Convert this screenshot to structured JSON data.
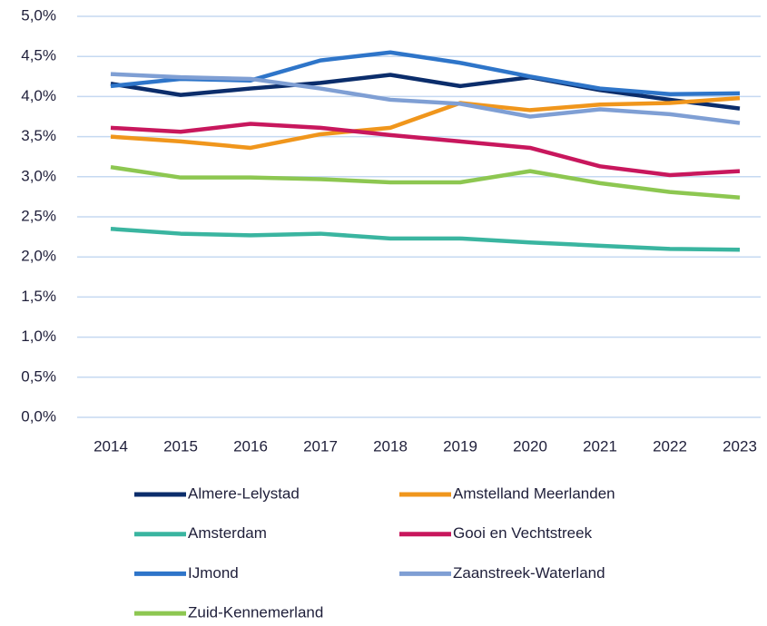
{
  "chart_data": {
    "type": "line",
    "categories": [
      "2014",
      "2015",
      "2016",
      "2017",
      "2018",
      "2019",
      "2020",
      "2021",
      "2022",
      "2023"
    ],
    "ylim": [
      0,
      5
    ],
    "yticks": [
      {
        "value": 0,
        "label": "0,0%"
      },
      {
        "value": 0.5,
        "label": "0,5%"
      },
      {
        "value": 1,
        "label": "1,0%"
      },
      {
        "value": 1.5,
        "label": "1,5%"
      },
      {
        "value": 2,
        "label": "2,0%"
      },
      {
        "value": 2.5,
        "label": "2,5%"
      },
      {
        "value": 3,
        "label": "3,0%"
      },
      {
        "value": 3.5,
        "label": "3,5%"
      },
      {
        "value": 4,
        "label": "4,0%"
      },
      {
        "value": 4.5,
        "label": "4,5%"
      },
      {
        "value": 5,
        "label": "5,0%"
      }
    ],
    "grid": true,
    "series": [
      {
        "name": "Almere-Lelystad",
        "color": "#0b2d6b",
        "values": [
          4.16,
          4.02,
          4.1,
          4.17,
          4.27,
          4.13,
          4.24,
          4.08,
          3.96,
          3.85
        ]
      },
      {
        "name": "Amstelland Meerlanden",
        "color": "#f0961c",
        "values": [
          3.5,
          3.44,
          3.36,
          3.53,
          3.61,
          3.92,
          3.83,
          3.9,
          3.92,
          3.98
        ]
      },
      {
        "name": "Amsterdam",
        "color": "#3ab5a0",
        "values": [
          2.35,
          2.29,
          2.27,
          2.29,
          2.23,
          2.23,
          2.18,
          2.14,
          2.1,
          2.09
        ]
      },
      {
        "name": "Gooi en Vechtstreek",
        "color": "#c8175d",
        "values": [
          3.61,
          3.56,
          3.66,
          3.61,
          3.52,
          3.44,
          3.36,
          3.13,
          3.02,
          3.07
        ]
      },
      {
        "name": "IJmond",
        "color": "#2e75c9",
        "values": [
          4.13,
          4.22,
          4.2,
          4.45,
          4.55,
          4.42,
          4.25,
          4.1,
          4.03,
          4.04
        ]
      },
      {
        "name": "Zaanstreek-Waterland",
        "color": "#7f9fd4",
        "values": [
          4.28,
          4.24,
          4.22,
          4.1,
          3.96,
          3.91,
          3.75,
          3.84,
          3.78,
          3.67
        ]
      },
      {
        "name": "Zuid-Kennemerland",
        "color": "#8dc751",
        "values": [
          3.12,
          2.99,
          2.99,
          2.97,
          2.93,
          2.93,
          3.07,
          2.92,
          2.81,
          2.74
        ]
      }
    ]
  }
}
